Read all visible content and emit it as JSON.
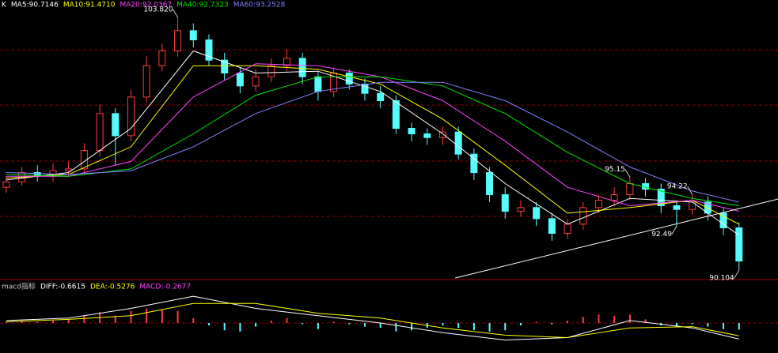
{
  "chart_data": [
    {
      "type": "candlestick",
      "title": "K",
      "xlim": [
        -0.4,
        49.5
      ],
      "ylim": [
        89.68,
        104.25
      ],
      "grid_levels": [
        102.06,
        99.06,
        96.02,
        93.02
      ],
      "up_color": "#ff3c3c",
      "down_color": "#54fcfc",
      "open": [
        94.6,
        94.9,
        95.4,
        95.2,
        95.5,
        95.6,
        96.6,
        98.6,
        97.4,
        99.5,
        101.2,
        102.0,
        103.1,
        102.6,
        101.5,
        100.8,
        100.1,
        100.6,
        101.2,
        101.6,
        100.6,
        99.8,
        100.8,
        100.2,
        99.7,
        99.3,
        97.8,
        97.5,
        97.3,
        97.6,
        96.4,
        95.4,
        94.2,
        93.3,
        93.5,
        92.9,
        92.1,
        92.6,
        93.5,
        93.9,
        94.2,
        94.8,
        94.5,
        93.6,
        93.4,
        93.8,
        93.2,
        92.4
      ],
      "high": [
        95.2,
        95.7,
        95.8,
        95.9,
        96.0,
        97.0,
        99.1,
        98.9,
        99.9,
        101.7,
        102.4,
        103.82,
        103.5,
        102.9,
        101.9,
        101.1,
        101.0,
        101.6,
        102.1,
        101.9,
        100.9,
        101.1,
        101.0,
        100.5,
        100.1,
        99.6,
        98.1,
        97.8,
        97.9,
        97.9,
        96.7,
        95.7,
        94.6,
        93.9,
        93.8,
        93.2,
        92.9,
        93.8,
        94.2,
        94.6,
        95.15,
        95.1,
        94.8,
        93.9,
        94.22,
        94.1,
        93.5,
        92.7
      ],
      "low": [
        94.3,
        94.7,
        94.9,
        94.9,
        95.2,
        95.3,
        96.3,
        95.8,
        97.1,
        99.2,
        100.9,
        101.7,
        102.2,
        101.2,
        100.4,
        99.7,
        99.8,
        100.3,
        100.9,
        100.2,
        99.3,
        99.5,
        99.9,
        99.3,
        98.9,
        97.5,
        97.1,
        96.9,
        96.9,
        96.1,
        95.0,
        93.8,
        92.9,
        93.0,
        92.5,
        91.7,
        91.8,
        92.3,
        93.2,
        93.6,
        93.9,
        94.1,
        93.2,
        92.49,
        93.1,
        92.8,
        92.0,
        90.104
      ],
      "close": [
        94.9,
        95.4,
        95.2,
        95.5,
        95.6,
        96.6,
        98.6,
        97.4,
        99.5,
        101.2,
        102.0,
        103.1,
        102.6,
        101.5,
        100.8,
        100.1,
        100.6,
        101.2,
        101.6,
        100.6,
        99.8,
        100.8,
        100.2,
        99.7,
        99.3,
        97.8,
        97.5,
        97.3,
        97.6,
        96.4,
        95.4,
        94.2,
        93.3,
        93.5,
        92.9,
        92.1,
        92.6,
        93.5,
        93.9,
        94.2,
        94.8,
        94.5,
        93.6,
        93.4,
        93.8,
        93.2,
        92.4,
        90.6
      ],
      "ma_x": [
        0,
        4,
        8,
        12,
        16,
        20,
        24,
        28,
        32,
        36,
        40,
        44,
        47
      ],
      "series": [
        {
          "label": "MA5:90.7146",
          "color": "#ffffff",
          "values": [
            95.0,
            95.4,
            97.8,
            102.0,
            100.8,
            100.9,
            99.8,
            97.5,
            94.8,
            92.6,
            94.0,
            93.8,
            92.0
          ]
        },
        {
          "label": "MA10:91.4710",
          "color": "#ffff00",
          "values": [
            95.1,
            95.3,
            96.8,
            101.2,
            101.2,
            101.0,
            100.2,
            98.3,
            95.8,
            93.2,
            93.5,
            93.9,
            92.6
          ]
        },
        {
          "label": "MA20:92.0367",
          "color": "#ff44ff",
          "values": [
            95.2,
            95.2,
            96.0,
            99.5,
            101.3,
            101.2,
            100.6,
            99.3,
            97.1,
            94.6,
            93.6,
            93.9,
            93.3
          ]
        },
        {
          "label": "MA40:92.7323",
          "color": "#00e600",
          "values": [
            95.3,
            95.2,
            95.6,
            97.5,
            99.6,
            100.6,
            100.6,
            100.1,
            98.6,
            96.5,
            94.8,
            94.0,
            93.6
          ]
        },
        {
          "label": "MA60:93.2528",
          "color": "#8080ff",
          "values": [
            95.4,
            95.3,
            95.5,
            96.8,
            98.6,
            99.8,
            100.3,
            100.3,
            99.3,
            97.6,
            95.7,
            94.4,
            93.8
          ]
        }
      ],
      "annotations": [
        {
          "label": "103.820",
          "value": 103.82,
          "index": 11
        },
        {
          "label": "95.15",
          "value": 95.15,
          "index": 40
        },
        {
          "label": "94.22",
          "value": 94.22,
          "index": 44
        },
        {
          "label": "92.49",
          "value": 92.49,
          "index": 43
        },
        {
          "label": "90.104",
          "value": 90.104,
          "index": 47
        }
      ],
      "trendline": {
        "x": [
          28.8,
          49.5
        ],
        "y": [
          89.68,
          93.96
        ],
        "color": "#ffffff"
      }
    },
    {
      "type": "macd",
      "title": "macd指标",
      "xlim": [
        -0.4,
        49.5
      ],
      "ylim": [
        -1.2,
        1.2
      ],
      "zero": 0,
      "up_color": "#ff3c3c",
      "down_color": "#54fcfc",
      "histogram": [
        0.05,
        0.1,
        0.05,
        0.1,
        0.15,
        0.3,
        0.45,
        0.3,
        0.5,
        0.6,
        0.55,
        0.5,
        0.2,
        -0.1,
        -0.3,
        -0.35,
        -0.15,
        0.1,
        0.2,
        -0.05,
        -0.25,
        0.05,
        -0.05,
        -0.15,
        -0.2,
        -0.35,
        -0.3,
        -0.2,
        -0.1,
        -0.2,
        -0.3,
        -0.35,
        -0.3,
        -0.1,
        0.05,
        -0.05,
        0.1,
        0.25,
        0.35,
        0.3,
        0.35,
        0.15,
        -0.1,
        -0.15,
        -0.05,
        -0.15,
        -0.25,
        -0.27
      ],
      "histogram_label": "MACD:-0.2677",
      "histogram_label_color": "#ff44ff",
      "line_x": [
        0,
        4,
        8,
        12,
        16,
        20,
        24,
        28,
        32,
        36,
        40,
        44,
        47
      ],
      "series": [
        {
          "label": "DIFF:-0.6615",
          "color": "#ffffff",
          "values": [
            0.1,
            0.2,
            0.6,
            1.1,
            0.6,
            0.3,
            0.0,
            -0.4,
            -0.7,
            -0.6,
            0.1,
            -0.2,
            -0.66
          ]
        },
        {
          "label": "DEA:-0.5276",
          "color": "#ffff00",
          "values": [
            0.05,
            0.15,
            0.3,
            0.8,
            0.8,
            0.4,
            0.2,
            -0.2,
            -0.5,
            -0.6,
            -0.2,
            -0.15,
            -0.53
          ]
        }
      ]
    }
  ]
}
